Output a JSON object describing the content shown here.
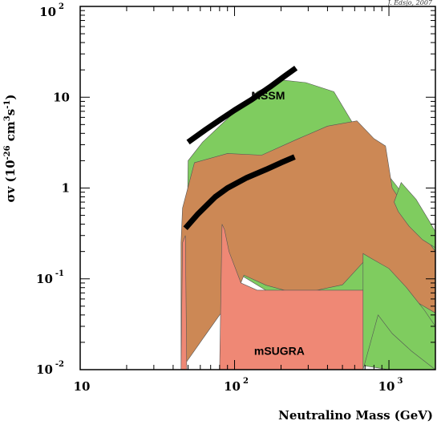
{
  "chart_data": {
    "type": "area",
    "title": "",
    "credit": "J. Edsjo, 2007",
    "xlabel": "Neutralino Mass (GeV)",
    "ylabel": {
      "base": "σv (10",
      "exp1": "-26",
      "mid": " cm",
      "exp2": "3",
      "s": "s",
      "exp3": "-1",
      "close": ")"
    },
    "xscale": "log",
    "yscale": "log",
    "xlim": [
      10,
      2000
    ],
    "ylim": [
      0.01,
      100
    ],
    "grid": false,
    "xticks": [
      {
        "value": 10,
        "base": "10",
        "exp": ""
      },
      {
        "value": 100,
        "base": "10",
        "exp": "2"
      },
      {
        "value": 1000,
        "base": "10",
        "exp": "3"
      }
    ],
    "yticks": [
      {
        "value": 0.01,
        "base": "10",
        "exp": "-2"
      },
      {
        "value": 0.1,
        "base": "10",
        "exp": "-1"
      },
      {
        "value": 1,
        "base": "1",
        "exp": ""
      },
      {
        "value": 10,
        "base": "10",
        "exp": ""
      },
      {
        "value": 100,
        "base": "10",
        "exp": "2"
      }
    ],
    "regions": [
      {
        "name": "MSSM",
        "color": "#7fcc5f",
        "label_at": [
          165,
          9.5
        ],
        "x": [
          48,
          50,
          62,
          90,
          140,
          200,
          290,
          440,
          650,
          850,
          1000,
          1150,
          1450,
          2000,
          2000,
          1000,
          700,
          450,
          300,
          170,
          110,
          70,
          48
        ],
        "y": [
          0.011,
          2.0,
          3.2,
          5.8,
          11.5,
          15.5,
          14.5,
          11.5,
          3.8,
          2.6,
          1.35,
          1.0,
          0.55,
          0.3,
          0.01,
          0.01,
          0.011,
          0.016,
          0.04,
          0.07,
          0.11,
          0.12,
          0.011
        ]
      },
      {
        "name": "",
        "color": "#cc8855",
        "x": [
          45,
          46,
          55,
          90,
          150,
          250,
          400,
          620,
          800,
          950,
          1050,
          1500,
          2000,
          2000,
          1400,
          1050,
          700,
          500,
          260,
          160,
          115,
          100,
          80,
          60,
          45
        ],
        "y": [
          0.25,
          0.6,
          1.9,
          2.4,
          2.3,
          3.4,
          4.8,
          5.5,
          3.5,
          2.9,
          1.0,
          0.4,
          0.2,
          0.042,
          0.06,
          0.1,
          0.16,
          0.086,
          0.068,
          0.085,
          0.11,
          0.06,
          0.04,
          0.02,
          0.01
        ]
      },
      {
        "name": "mSUGRA",
        "color": "#ef8875",
        "label_at": [
          195,
          0.0145
        ],
        "x": [
          45,
          46,
          48,
          49,
          80,
          83,
          86,
          92,
          110,
          140,
          200,
          680,
          680,
          45
        ],
        "y": [
          0.01,
          0.25,
          0.3,
          0.01,
          0.01,
          0.4,
          0.35,
          0.2,
          0.09,
          0.075,
          0.075,
          0.075,
          0.01,
          0.01
        ]
      },
      {
        "name": "",
        "color": "#7fcc5f",
        "x": [
          680,
          680,
          760,
          1000,
          1300,
          1700,
          2000,
          2000,
          1400,
          1050,
          850,
          680
        ],
        "y": [
          0.01,
          0.19,
          0.17,
          0.13,
          0.08,
          0.045,
          0.03,
          0.01,
          0.016,
          0.025,
          0.04,
          0.01
        ]
      },
      {
        "name": "",
        "color": "#7fcc5f",
        "x": [
          1080,
          1200,
          1500,
          1800,
          2000,
          2000,
          1650,
          1350,
          1150,
          1080
        ],
        "y": [
          0.7,
          1.15,
          0.75,
          0.45,
          0.33,
          0.22,
          0.27,
          0.38,
          0.55,
          0.7
        ]
      }
    ],
    "series": [
      {
        "name": "",
        "color": "#000000",
        "x": [
          50,
          65,
          80,
          100,
          130,
          170,
          210,
          250
        ],
        "y": [
          3.2,
          4.4,
          5.6,
          7.2,
          9.5,
          13.0,
          17.0,
          21.0
        ]
      },
      {
        "name": "",
        "color": "#000000",
        "x": [
          48,
          58,
          75,
          90,
          120,
          160,
          200,
          245
        ],
        "y": [
          0.36,
          0.52,
          0.8,
          1.0,
          1.3,
          1.6,
          1.9,
          2.2
        ]
      }
    ]
  }
}
